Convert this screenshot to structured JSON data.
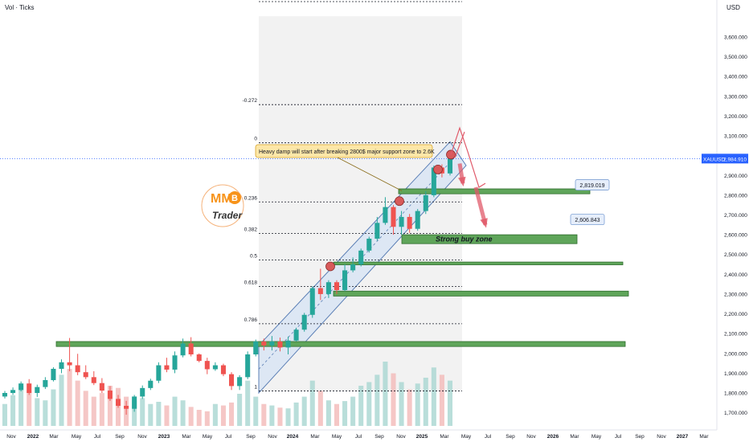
{
  "chart_data": {
    "type": "candlestick",
    "symbol": "XAUUSD",
    "currency": "USD",
    "indicator_label": "Vol · Ticks",
    "last_price": "2,984.910",
    "x_ticks": [
      "2022",
      "Mar",
      "May",
      "Jul",
      "Sep",
      "Nov",
      "2023",
      "Mar",
      "May",
      "Jul",
      "Sep",
      "Nov",
      "2024",
      "Mar",
      "May",
      "Jul",
      "Sep",
      "Nov",
      "2025",
      "Mar",
      "May",
      "Jul",
      "Sep",
      "Nov",
      "2026",
      "Mar",
      "May",
      "Jul",
      "Sep",
      "Nov",
      "2027",
      "Mar"
    ],
    "x_tick_prefix": "Nov",
    "y_ticks": [
      "3,600.000",
      "3,500.000",
      "3,400.000",
      "3,300.000",
      "3,200.000",
      "3,100.000",
      "3,000.000",
      "2,900.000",
      "2,800.000",
      "2,700.000",
      "2,600.000",
      "2,500.000",
      "2,400.000",
      "2,300.000",
      "2,200.000",
      "2,100.000",
      "2,000.000",
      "1,900.000",
      "1,800.000",
      "1,700.000"
    ],
    "y_range": [
      1670,
      3730
    ],
    "fib_levels": [
      {
        "label": "-0.272",
        "price": 3258
      },
      {
        "label": "0",
        "price": 3065
      },
      {
        "label": "0.236",
        "price": 2766
      },
      {
        "label": "0.382",
        "price": 2607
      },
      {
        "label": "0.5",
        "price": 2472
      },
      {
        "label": "0.618",
        "price": 2338
      },
      {
        "label": "0.786",
        "price": 2150
      },
      {
        "label": "1",
        "price": 1810
      }
    ],
    "price_labels": [
      {
        "text": "2,819.019",
        "price": 2850
      },
      {
        "text": "2,606.843",
        "price": 2675
      }
    ],
    "annotations": {
      "callout": "Heavy damp will start after breaking 2800$ major support zone to 2.6K",
      "zone_label": "Strong buy zone"
    },
    "logo": {
      "letters": "MM",
      "coin": "B",
      "tagline": "Trader"
    },
    "colors": {
      "up": "#26a69a",
      "down": "#ef5350",
      "zone_fill": "#5fa55a",
      "zone_stroke": "#2e6b2c",
      "channel_fill": "#cfe0f5",
      "channel_stroke": "#5b7fb5",
      "callout_bg": "#fde7a8",
      "arrow": "#e05a6a",
      "marker": "#d85a5a",
      "last_price": "#2962ff"
    },
    "candles": [
      {
        "t": 0,
        "o": 1782,
        "h": 1810,
        "l": 1772,
        "c": 1800
      },
      {
        "t": 1,
        "o": 1800,
        "h": 1828,
        "l": 1790,
        "c": 1815
      },
      {
        "t": 2,
        "o": 1815,
        "h": 1858,
        "l": 1808,
        "c": 1848
      },
      {
        "t": 3,
        "o": 1848,
        "h": 1870,
        "l": 1790,
        "c": 1800
      },
      {
        "t": 4,
        "o": 1800,
        "h": 1842,
        "l": 1780,
        "c": 1830
      },
      {
        "t": 5,
        "o": 1830,
        "h": 1880,
        "l": 1820,
        "c": 1865
      },
      {
        "t": 6,
        "o": 1865,
        "h": 1930,
        "l": 1858,
        "c": 1922
      },
      {
        "t": 7,
        "o": 1922,
        "h": 1970,
        "l": 1900,
        "c": 1955
      },
      {
        "t": 8,
        "o": 1955,
        "h": 2078,
        "l": 1910,
        "c": 1940
      },
      {
        "t": 9,
        "o": 1940,
        "h": 1998,
        "l": 1890,
        "c": 1905
      },
      {
        "t": 10,
        "o": 1905,
        "h": 1940,
        "l": 1870,
        "c": 1880
      },
      {
        "t": 11,
        "o": 1880,
        "h": 1910,
        "l": 1840,
        "c": 1850
      },
      {
        "t": 12,
        "o": 1850,
        "h": 1875,
        "l": 1800,
        "c": 1812
      },
      {
        "t": 13,
        "o": 1812,
        "h": 1835,
        "l": 1760,
        "c": 1770
      },
      {
        "t": 14,
        "o": 1770,
        "h": 1790,
        "l": 1725,
        "c": 1735
      },
      {
        "t": 15,
        "o": 1735,
        "h": 1760,
        "l": 1690,
        "c": 1720
      },
      {
        "t": 16,
        "o": 1720,
        "h": 1790,
        "l": 1705,
        "c": 1782
      },
      {
        "t": 17,
        "o": 1782,
        "h": 1838,
        "l": 1770,
        "c": 1825
      },
      {
        "t": 18,
        "o": 1825,
        "h": 1872,
        "l": 1815,
        "c": 1862
      },
      {
        "t": 19,
        "o": 1862,
        "h": 1955,
        "l": 1850,
        "c": 1940
      },
      {
        "t": 20,
        "o": 1940,
        "h": 1978,
        "l": 1905,
        "c": 1918
      },
      {
        "t": 21,
        "o": 1918,
        "h": 2010,
        "l": 1900,
        "c": 1990
      },
      {
        "t": 22,
        "o": 1990,
        "h": 2075,
        "l": 1980,
        "c": 2050
      },
      {
        "t": 23,
        "o": 2050,
        "h": 2082,
        "l": 1985,
        "c": 1995
      },
      {
        "t": 24,
        "o": 1995,
        "h": 2000,
        "l": 1955,
        "c": 1962
      },
      {
        "t": 25,
        "o": 1962,
        "h": 1978,
        "l": 1895,
        "c": 1920
      },
      {
        "t": 26,
        "o": 1920,
        "h": 1955,
        "l": 1912,
        "c": 1940
      },
      {
        "t": 27,
        "o": 1940,
        "h": 1948,
        "l": 1885,
        "c": 1895
      },
      {
        "t": 28,
        "o": 1895,
        "h": 1905,
        "l": 1815,
        "c": 1835
      },
      {
        "t": 29,
        "o": 1835,
        "h": 1890,
        "l": 1815,
        "c": 1880
      },
      {
        "t": 30,
        "o": 1880,
        "h": 2010,
        "l": 1870,
        "c": 1995
      },
      {
        "t": 31,
        "o": 1995,
        "h": 2070,
        "l": 1985,
        "c": 2060
      },
      {
        "t": 32,
        "o": 2060,
        "h": 2075,
        "l": 2015,
        "c": 2040
      },
      {
        "t": 33,
        "o": 2040,
        "h": 2088,
        "l": 2015,
        "c": 2060
      },
      {
        "t": 34,
        "o": 2060,
        "h": 2080,
        "l": 2010,
        "c": 2030
      },
      {
        "t": 35,
        "o": 2030,
        "h": 2085,
        "l": 1995,
        "c": 2065
      },
      {
        "t": 36,
        "o": 2065,
        "h": 2130,
        "l": 2060,
        "c": 2120
      },
      {
        "t": 37,
        "o": 2120,
        "h": 2205,
        "l": 2110,
        "c": 2195
      },
      {
        "t": 38,
        "o": 2195,
        "h": 2340,
        "l": 2180,
        "c": 2330
      },
      {
        "t": 39,
        "o": 2330,
        "h": 2428,
        "l": 2270,
        "c": 2300
      },
      {
        "t": 40,
        "o": 2300,
        "h": 2370,
        "l": 2280,
        "c": 2360
      },
      {
        "t": 41,
        "o": 2360,
        "h": 2370,
        "l": 2300,
        "c": 2320
      },
      {
        "t": 42,
        "o": 2320,
        "h": 2450,
        "l": 2315,
        "c": 2420
      },
      {
        "t": 43,
        "o": 2420,
        "h": 2485,
        "l": 2410,
        "c": 2450
      },
      {
        "t": 44,
        "o": 2450,
        "h": 2530,
        "l": 2440,
        "c": 2520
      },
      {
        "t": 45,
        "o": 2520,
        "h": 2590,
        "l": 2510,
        "c": 2580
      },
      {
        "t": 46,
        "o": 2580,
        "h": 2690,
        "l": 2570,
        "c": 2660
      },
      {
        "t": 47,
        "o": 2660,
        "h": 2790,
        "l": 2650,
        "c": 2740
      },
      {
        "t": 48,
        "o": 2740,
        "h": 2750,
        "l": 2600,
        "c": 2640
      },
      {
        "t": 49,
        "o": 2640,
        "h": 2720,
        "l": 2600,
        "c": 2690
      },
      {
        "t": 50,
        "o": 2690,
        "h": 2705,
        "l": 2610,
        "c": 2630
      },
      {
        "t": 51,
        "o": 2630,
        "h": 2730,
        "l": 2620,
        "c": 2720
      },
      {
        "t": 52,
        "o": 2720,
        "h": 2820,
        "l": 2705,
        "c": 2800
      },
      {
        "t": 53,
        "o": 2800,
        "h": 2950,
        "l": 2790,
        "c": 2940
      },
      {
        "t": 54,
        "o": 2940,
        "h": 2956,
        "l": 2890,
        "c": 2910
      },
      {
        "t": 55,
        "o": 2910,
        "h": 3005,
        "l": 2900,
        "c": 2985
      }
    ],
    "volumes": [
      30,
      42,
      55,
      48,
      38,
      35,
      50,
      70,
      78,
      62,
      48,
      40,
      45,
      55,
      52,
      40,
      35,
      38,
      30,
      33,
      28,
      40,
      35,
      26,
      22,
      20,
      30,
      28,
      32,
      44,
      62,
      40,
      30,
      28,
      25,
      24,
      32,
      40,
      62,
      48,
      35,
      30,
      34,
      40,
      55,
      60,
      70,
      88,
      72,
      60,
      50,
      58,
      66,
      80,
      70,
      62
    ]
  }
}
